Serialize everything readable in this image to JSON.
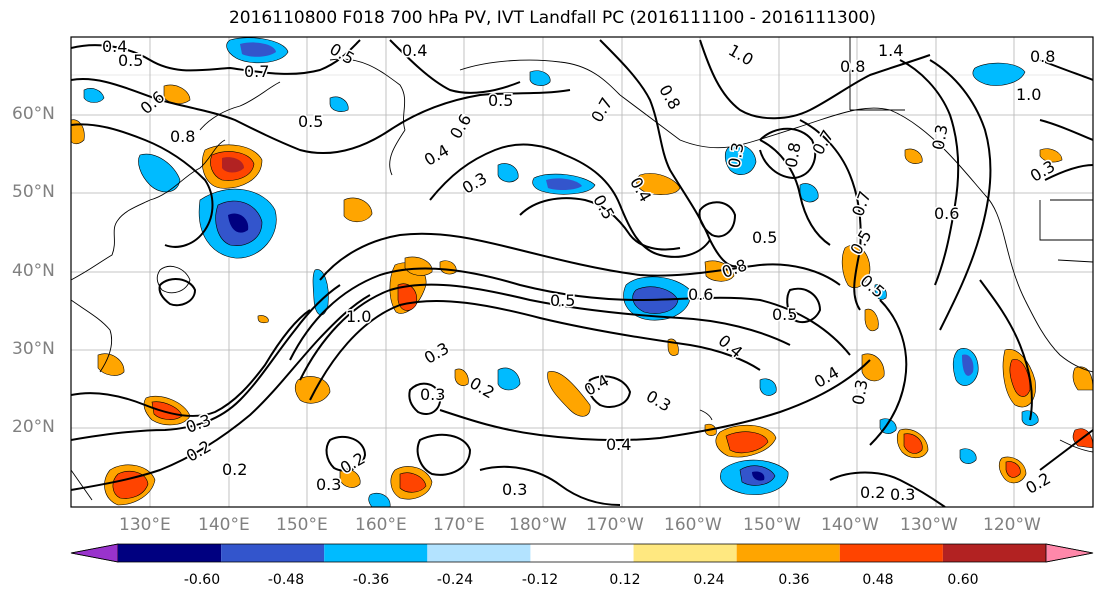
{
  "title": "2016110800 F018 700 hPa PV, IVT Landfall PC (2016111100 - 2016111300)",
  "lat_labels": [
    "60°N",
    "50°N",
    "40°N",
    "30°N",
    "20°N"
  ],
  "lon_labels": [
    "130°E",
    "140°E",
    "150°E",
    "160°E",
    "170°E",
    "180°W",
    "170°W",
    "160°W",
    "150°W",
    "140°W",
    "130°W",
    "120°W"
  ],
  "colorbar": {
    "colors": [
      "#9933cc",
      "#000080",
      "#3355cc",
      "#00bbff",
      "#b3e3ff",
      "#ffffff",
      "#ffe880",
      "#ffa500",
      "#ff4400",
      "#b22222",
      "#ff88aa"
    ],
    "tick_labels": [
      "-0.60",
      "-0.48",
      "-0.36",
      "-0.24",
      "-0.12",
      "0.12",
      "0.24",
      "0.36",
      "0.48",
      "0.60"
    ]
  },
  "contour_labels": [
    "0.4",
    "0.5",
    "0.7",
    "0.5",
    "0.4",
    "1.0",
    "0.8",
    "1.4",
    "0.8",
    "1.0",
    "0.6",
    "0.5",
    "0.5",
    "0.8",
    "0.6",
    "0.4",
    "0.3",
    "0.7",
    "0.8",
    "0.3",
    "0.8",
    "0.7",
    "0.3",
    "0.5",
    "0.4",
    "0.5",
    "0.7",
    "0.6",
    "0.8",
    "0.5",
    "0.5",
    "0.5",
    "1.0",
    "0.6",
    "0.3",
    "0.2",
    "0.3",
    "0.4",
    "0.5",
    "0.4",
    "0.3",
    "0.3",
    "0.2",
    "0.2",
    "0.3",
    "0.3",
    "0.4",
    "0.4",
    "0.3",
    "0.2",
    "0.3",
    "0.2",
    "0.3",
    "0.2"
  ]
}
